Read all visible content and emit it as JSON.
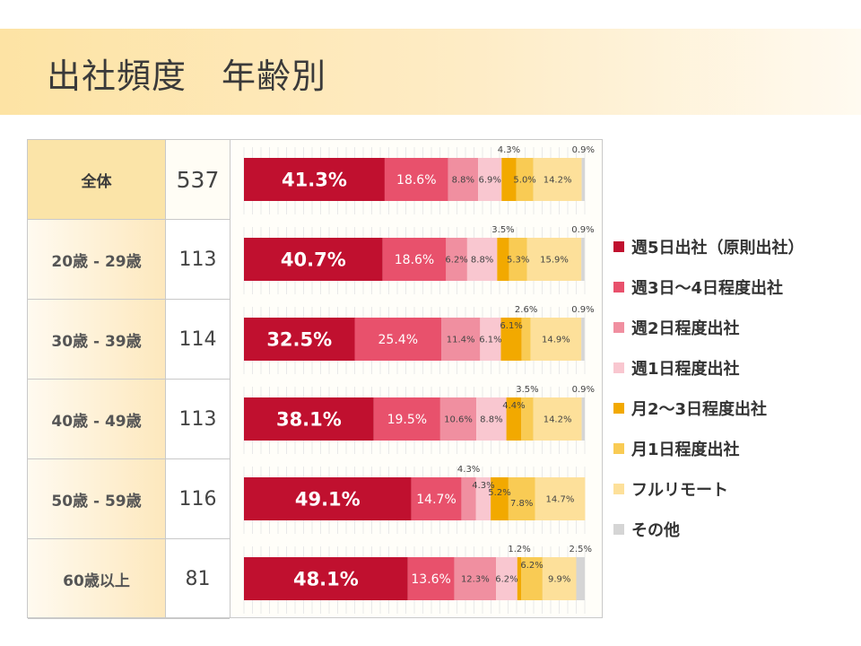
{
  "title": "出社頻度　年齢別",
  "colors": {
    "background": "#ffffff",
    "series": [
      "#c0102f",
      "#e8516c",
      "#f08fa0",
      "#f9c7d0",
      "#f2a900",
      "#f9cb54",
      "#fde09a",
      "#d5d5d5"
    ]
  },
  "legend": [
    {
      "label": "週5日出社（原則出社）",
      "color": "#c0102f"
    },
    {
      "label": "週3日〜4日程度出社",
      "color": "#e8516c"
    },
    {
      "label": "週2日程度出社",
      "color": "#f08fa0"
    },
    {
      "label": "週1日程度出社",
      "color": "#f9c7d0"
    },
    {
      "label": "月2〜3日程度出社",
      "color": "#f2a900"
    },
    {
      "label": "月1日程度出社",
      "color": "#f9cb54"
    },
    {
      "label": "フルリモート",
      "color": "#fde09a"
    },
    {
      "label": "その他",
      "color": "#d5d5d5"
    }
  ],
  "table": {
    "rows": [
      {
        "label": "全体",
        "n": "537"
      },
      {
        "label": "20歳 - 29歳",
        "n": "113"
      },
      {
        "label": "30歳 - 39歳",
        "n": "114"
      },
      {
        "label": "40歳 - 49歳",
        "n": "113"
      },
      {
        "label": "50歳 - 59歳",
        "n": "116"
      },
      {
        "label": "60歳以上",
        "n": "81"
      }
    ]
  },
  "chart_data": {
    "type": "bar",
    "orientation": "horizontal",
    "stacked": true,
    "normalized_percent": true,
    "title": "出社頻度　年齢別",
    "categories": [
      "全体",
      "20歳 - 29歳",
      "30歳 - 39歳",
      "40歳 - 49歳",
      "50歳 - 59歳",
      "60歳以上"
    ],
    "series": [
      {
        "name": "週5日出社（原則出社）",
        "values": [
          41.3,
          40.7,
          32.5,
          38.1,
          49.1,
          48.1
        ]
      },
      {
        "name": "週3日〜4日程度出社",
        "values": [
          18.6,
          18.6,
          25.4,
          19.5,
          14.7,
          13.6
        ]
      },
      {
        "name": "週2日程度出社",
        "values": [
          8.8,
          6.2,
          11.4,
          10.6,
          4.3,
          12.3
        ]
      },
      {
        "name": "週1日程度出社",
        "values": [
          6.9,
          8.8,
          6.1,
          8.8,
          4.3,
          6.2
        ]
      },
      {
        "name": "月2〜3日程度出社",
        "values": [
          4.3,
          3.5,
          6.1,
          4.4,
          5.2,
          1.2
        ]
      },
      {
        "name": "月1日程度出社",
        "values": [
          5.0,
          5.3,
          2.6,
          3.5,
          7.8,
          6.2
        ]
      },
      {
        "name": "フルリモート",
        "values": [
          14.2,
          15.9,
          14.9,
          14.2,
          14.7,
          9.9
        ]
      },
      {
        "name": "その他",
        "values": [
          0.9,
          0.9,
          0.9,
          0.9,
          0.0,
          2.5
        ]
      }
    ],
    "xlim": [
      0,
      100
    ],
    "grid": true,
    "legend_position": "right",
    "labels": [
      [
        {
          "series": 0,
          "text": "41.3%",
          "pos": "inside"
        },
        {
          "series": 1,
          "text": "18.6%",
          "pos": "inside"
        },
        {
          "series": 2,
          "text": "8.8%",
          "pos": "inside"
        },
        {
          "series": 3,
          "text": "6.9%",
          "pos": "inside"
        },
        {
          "series": 4,
          "text": "4.3%",
          "pos": "above"
        },
        {
          "series": 5,
          "text": "5.0%",
          "pos": "inside"
        },
        {
          "series": 6,
          "text": "14.2%",
          "pos": "inside"
        },
        {
          "series": 7,
          "text": "0.9%",
          "pos": "above"
        }
      ],
      [
        {
          "series": 0,
          "text": "40.7%",
          "pos": "inside"
        },
        {
          "series": 1,
          "text": "18.6%",
          "pos": "inside"
        },
        {
          "series": 2,
          "text": "6.2%",
          "pos": "inside"
        },
        {
          "series": 3,
          "text": "8.8%",
          "pos": "inside"
        },
        {
          "series": 4,
          "text": "3.5%",
          "pos": "above"
        },
        {
          "series": 5,
          "text": "5.3%",
          "pos": "inside"
        },
        {
          "series": 6,
          "text": "15.9%",
          "pos": "inside"
        },
        {
          "series": 7,
          "text": "0.9%",
          "pos": "above"
        }
      ],
      [
        {
          "series": 0,
          "text": "32.5%",
          "pos": "inside"
        },
        {
          "series": 1,
          "text": "25.4%",
          "pos": "inside"
        },
        {
          "series": 2,
          "text": "11.4%",
          "pos": "inside"
        },
        {
          "series": 3,
          "text": "6.1%",
          "pos": "inside"
        },
        {
          "series": 4,
          "text": "6.1%",
          "pos": "top-inside"
        },
        {
          "series": 5,
          "text": "2.6%",
          "pos": "above"
        },
        {
          "series": 6,
          "text": "14.9%",
          "pos": "inside"
        },
        {
          "series": 7,
          "text": "0.9%",
          "pos": "above"
        }
      ],
      [
        {
          "series": 0,
          "text": "38.1%",
          "pos": "inside"
        },
        {
          "series": 1,
          "text": "19.5%",
          "pos": "inside"
        },
        {
          "series": 2,
          "text": "10.6%",
          "pos": "inside"
        },
        {
          "series": 3,
          "text": "8.8%",
          "pos": "inside"
        },
        {
          "series": 4,
          "text": "4.4%",
          "pos": "top-inside"
        },
        {
          "series": 5,
          "text": "3.5%",
          "pos": "above"
        },
        {
          "series": 6,
          "text": "14.2%",
          "pos": "inside"
        },
        {
          "series": 7,
          "text": "0.9%",
          "pos": "above"
        }
      ],
      [
        {
          "series": 0,
          "text": "49.1%",
          "pos": "inside"
        },
        {
          "series": 1,
          "text": "14.7%",
          "pos": "inside"
        },
        {
          "series": 2,
          "text": "4.3%",
          "pos": "above"
        },
        {
          "series": 3,
          "text": "4.3%",
          "pos": "top-inside"
        },
        {
          "series": 4,
          "text": "5.2%",
          "pos": "mid-upper"
        },
        {
          "series": 5,
          "text": "7.8%",
          "pos": "inside-low"
        },
        {
          "series": 6,
          "text": "14.7%",
          "pos": "inside"
        }
      ],
      [
        {
          "series": 0,
          "text": "48.1%",
          "pos": "inside"
        },
        {
          "series": 1,
          "text": "13.6%",
          "pos": "inside"
        },
        {
          "series": 2,
          "text": "12.3%",
          "pos": "inside"
        },
        {
          "series": 3,
          "text": "6.2%",
          "pos": "inside"
        },
        {
          "series": 4,
          "text": "1.2%",
          "pos": "above"
        },
        {
          "series": 5,
          "text": "6.2%",
          "pos": "top-inside"
        },
        {
          "series": 6,
          "text": "9.9%",
          "pos": "inside"
        },
        {
          "series": 7,
          "text": "2.5%",
          "pos": "above"
        }
      ]
    ]
  }
}
